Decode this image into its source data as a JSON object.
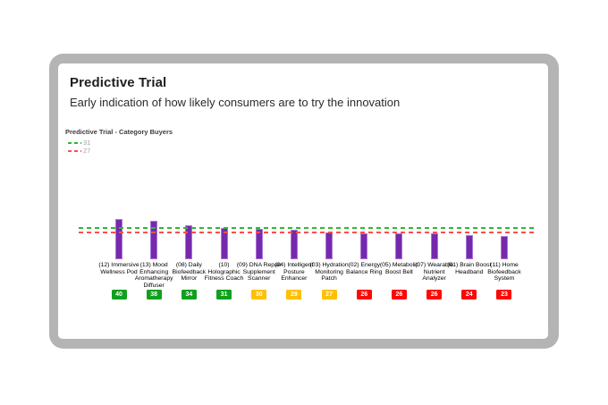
{
  "header": {
    "title": "Predictive Trial",
    "subtitle": "Early indication of how likely consumers are to try the innovation"
  },
  "legend": {
    "title": "Predictive Trial - Category Buyers",
    "items": [
      {
        "label": "31",
        "color": "#2db92d"
      },
      {
        "label": "27",
        "color": "#ff4d4d"
      }
    ]
  },
  "chart_data": {
    "type": "bar",
    "title": "Predictive Trial - Category Buyers",
    "xlabel": "",
    "ylabel": "",
    "ylim": [
      0,
      46
    ],
    "grid": false,
    "legend_position": "top-left",
    "bar_color": "#7629ac",
    "bar_border_color": "#a678d8",
    "categories": [
      "(12) Immersive Wellness Pod",
      "(13) Mood Enhancing Aromatherapy Diffuser",
      "(08) Daily Biofeedback Mirror",
      "(10) Holographic Fitness Coach",
      "(09) DNA Repair Supplement Scanner",
      "(04) Intelligent Posture Enhancer",
      "(03) Hydration Monitoring Patch",
      "(02) Energy Balance Ring",
      "(05) Metabolic Boost Belt",
      "(07) Wearable Nutrient Analyzer",
      "(01) Brain Boost Headband",
      "(11) Home Biofeedback System"
    ],
    "values": [
      40,
      38,
      34,
      31,
      30,
      29,
      27,
      26,
      26,
      26,
      24,
      23
    ],
    "badge_colors": [
      "#11a01d",
      "#11a01d",
      "#11a01d",
      "#11a01d",
      "#ffc000",
      "#ffc000",
      "#ffc000",
      "#ff0606",
      "#ff0606",
      "#ff0606",
      "#ff0606",
      "#ff0606"
    ],
    "reference_lines": [
      {
        "value": 31,
        "color": "#2db92d",
        "style": "dashed"
      },
      {
        "value": 27,
        "color": "#ff4d4d",
        "style": "dashed"
      }
    ]
  }
}
